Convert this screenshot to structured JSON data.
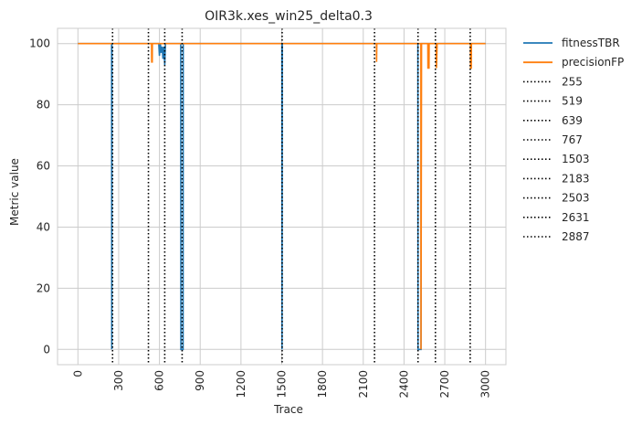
{
  "chart_data": {
    "type": "line",
    "title": "OIR3k.xes_win25_delta0.3",
    "xlabel": "Trace",
    "ylabel": "Metric value",
    "xlim": [
      -150,
      3150
    ],
    "ylim": [
      -5,
      105
    ],
    "xticks": [
      0,
      300,
      600,
      900,
      1200,
      1500,
      1800,
      2100,
      2400,
      2700,
      3000
    ],
    "yticks": [
      0,
      20,
      40,
      60,
      80,
      100
    ],
    "grid": true,
    "legend_position": "outside-right",
    "series": [
      {
        "name": "fitnessTBR",
        "color": "#1f77b4",
        "points": [
          [
            0,
            100
          ],
          [
            248,
            100
          ],
          [
            249,
            0
          ],
          [
            250,
            100
          ],
          [
            595,
            100
          ],
          [
            600,
            96
          ],
          [
            607,
            100
          ],
          [
            612,
            97
          ],
          [
            620,
            99
          ],
          [
            626,
            95
          ],
          [
            633,
            99
          ],
          [
            639,
            93
          ],
          [
            644,
            100
          ],
          [
            757,
            100
          ],
          [
            758,
            0
          ],
          [
            774,
            0
          ],
          [
            775,
            100
          ],
          [
            1501,
            100
          ],
          [
            1502,
            0
          ],
          [
            1504,
            100
          ],
          [
            2502,
            100
          ],
          [
            2503,
            0
          ],
          [
            2525,
            0
          ],
          [
            2526,
            100
          ],
          [
            3000,
            100
          ]
        ]
      },
      {
        "name": "precisionFP",
        "color": "#ff7f0e",
        "points": [
          [
            0,
            100
          ],
          [
            542,
            100
          ],
          [
            543,
            94
          ],
          [
            547,
            94
          ],
          [
            548,
            100
          ],
          [
            2197,
            100
          ],
          [
            2198,
            94
          ],
          [
            2200,
            100
          ],
          [
            2524,
            100
          ],
          [
            2525,
            0
          ],
          [
            2529,
            100
          ],
          [
            2575,
            100
          ],
          [
            2576,
            92
          ],
          [
            2584,
            92
          ],
          [
            2585,
            100
          ],
          [
            2638,
            100
          ],
          [
            2639,
            92
          ],
          [
            2644,
            100
          ],
          [
            2889,
            100
          ],
          [
            2890,
            92
          ],
          [
            2895,
            92
          ],
          [
            2896,
            100
          ],
          [
            3000,
            100
          ]
        ]
      }
    ],
    "vlines": {
      "color": "#000000",
      "style": "dotted",
      "values": [
        255,
        519,
        639,
        767,
        1503,
        2183,
        2503,
        2631,
        2887
      ]
    }
  }
}
